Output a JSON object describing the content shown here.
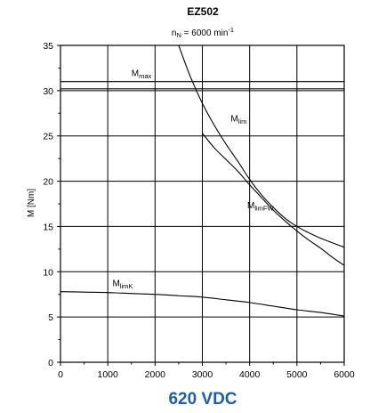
{
  "chart_data": {
    "type": "line",
    "title": "EZ502",
    "subtitle": {
      "main": "n",
      "sub": "N",
      "rest": " = 6000 min",
      "sup": "-1"
    },
    "ylabel": "M [Nm]",
    "xlabel": "",
    "xlim": [
      0,
      6000
    ],
    "ylim": [
      0,
      35
    ],
    "xticks": [
      "0",
      "1000",
      "2000",
      "3000",
      "4000",
      "5000",
      "6000"
    ],
    "yticks": [
      "0",
      "5",
      "10",
      "15",
      "20",
      "25",
      "30",
      "35"
    ],
    "grid": true,
    "series": [
      {
        "name": "Mmax",
        "label_main": "M",
        "label_sub": "max",
        "x": [
          0,
          6000
        ],
        "y": [
          31,
          31
        ]
      },
      {
        "name": "Mmax lower line",
        "x": [
          0,
          6000
        ],
        "y": [
          30.2,
          30.2
        ]
      },
      {
        "name": "Mlim",
        "label_main": "M",
        "label_sub": "lim",
        "x": [
          2500,
          2750,
          3000,
          3250,
          3500,
          3750,
          4000,
          4250,
          4500,
          4750,
          5000,
          5250,
          5500,
          5750,
          6000
        ],
        "y": [
          35.0,
          31.5,
          28.6,
          26.2,
          24.1,
          22.2,
          20.2,
          18.5,
          17.1,
          15.9,
          15.0,
          14.3,
          13.7,
          13.2,
          12.7
        ]
      },
      {
        "name": "MlimFW",
        "label_main": "M",
        "label_sub": "limFW",
        "x": [
          3000,
          3250,
          3500,
          3750,
          4000,
          4250,
          4500,
          4750,
          5000,
          5250,
          5500,
          5750,
          6000
        ],
        "y": [
          25.3,
          23.7,
          22.4,
          21.1,
          19.6,
          18.2,
          16.8,
          15.6,
          14.5,
          13.5,
          12.6,
          11.6,
          10.7
        ]
      },
      {
        "name": "MlimK",
        "label_main": "M",
        "label_sub": "limK",
        "x": [
          0,
          500,
          1000,
          1500,
          2000,
          2500,
          3000,
          3500,
          4000,
          4500,
          5000,
          5500,
          6000
        ],
        "y": [
          7.8,
          7.75,
          7.7,
          7.6,
          7.5,
          7.35,
          7.2,
          6.9,
          6.6,
          6.2,
          5.8,
          5.5,
          5.1
        ]
      }
    ]
  },
  "footer": {
    "voltage": "620 VDC"
  },
  "colors": {
    "voltage_text": "#1f5fa6",
    "lines": "#000000",
    "background": "#ffffff"
  }
}
